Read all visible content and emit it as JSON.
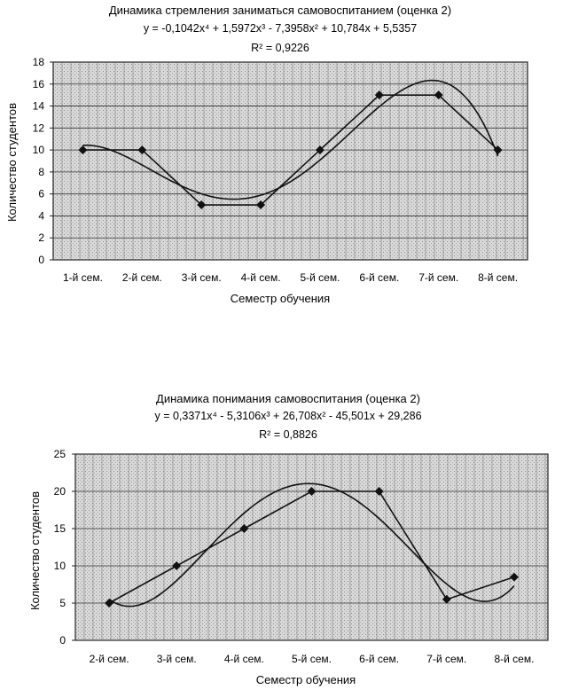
{
  "chart_data": [
    {
      "type": "line",
      "title": "Динамика стремления заниматься самовоспитанием (оценка 2)",
      "equation": "y = -0,1042x⁴ + 1,5972x³ - 7,3958x² + 10,784x + 5,5357",
      "r2": "R² = 0,9226",
      "poly": [
        5.5357,
        10.784,
        -7.3958,
        1.5972,
        -0.1042
      ],
      "xlabel": "Семестр обучения",
      "ylabel": "Количество студентов",
      "categories": [
        "1-й сем.",
        "2-й сем.",
        "3-й сем.",
        "4-й сем.",
        "5-й сем.",
        "6-й сем.",
        "7-й сем.",
        "8-й сем."
      ],
      "values": [
        10,
        10,
        5,
        5,
        10,
        15,
        15,
        10
      ],
      "ylim": [
        0,
        18
      ],
      "yticks": [
        0,
        2,
        4,
        6,
        8,
        10,
        12,
        14,
        16,
        18
      ],
      "grid": true,
      "trendline": "polynomial order 4"
    },
    {
      "type": "line",
      "title": "Динамика понимания самовоспитания (оценка 2)",
      "equation": "y = 0,3371x⁴ - 5,3106x³ + 26,708x² - 45,501x + 29,286",
      "r2": "R² = 0,8826",
      "poly": [
        29.286,
        -45.501,
        26.708,
        -5.3106,
        0.3371
      ],
      "xlabel": "Семестр обучения",
      "ylabel": "Количество студентов",
      "categories": [
        "2-й сем.",
        "3-й сем.",
        "4-й сем.",
        "5-й сем.",
        "6-й сем.",
        "7-й сем.",
        "8-й сем."
      ],
      "values": [
        5,
        10,
        15,
        20,
        20,
        5.5,
        8.5
      ],
      "ylim": [
        0,
        25
      ],
      "yticks": [
        0,
        5,
        10,
        15,
        20,
        25
      ],
      "grid": true,
      "trendline": "polynomial order 4"
    }
  ]
}
